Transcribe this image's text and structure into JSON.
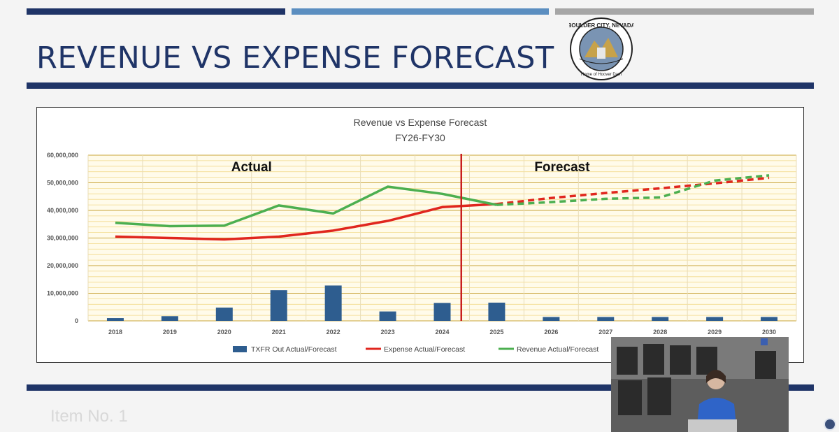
{
  "slide": {
    "title": "REVENUE VS EXPENSE FORECAST",
    "footer_text": "Item No. 1",
    "logo": {
      "icon": "city-seal-icon",
      "text_top": "BOULDER CITY, NEVADA",
      "text_bottom": "Home of Hoover Dam"
    },
    "accent_colors": {
      "navy": "#1f3467",
      "light_blue": "#5b8ec0",
      "gray": "#a6a6a6"
    }
  },
  "chart_data": {
    "type": "bar+line",
    "title": "Revenue vs Expense Forecast",
    "subtitle": "FY26-FY30",
    "categories": [
      "2018",
      "2019",
      "2020",
      "2021",
      "2022",
      "2023",
      "2024",
      "2025",
      "2026",
      "2027",
      "2028",
      "2029",
      "2030"
    ],
    "ylim": [
      0,
      60000000
    ],
    "yticks": [
      0,
      10000000,
      20000000,
      30000000,
      40000000,
      50000000,
      60000000
    ],
    "ytick_labels": [
      "0",
      "10,000,000",
      "20,000,000",
      "30,000,000",
      "40,000,000",
      "50,000,000",
      "60,000,000"
    ],
    "grid": true,
    "legend_position": "bottom",
    "annotations": [
      {
        "text": "Actual",
        "region": "left"
      },
      {
        "text": "Forecast",
        "region": "right"
      }
    ],
    "divider_between": [
      "2024",
      "2025"
    ],
    "series": [
      {
        "name": "TXFR Out Actual/Forecast",
        "type": "bar",
        "color": "#2e5d8f",
        "values": [
          1000000,
          1700000,
          4800000,
          11100000,
          12800000,
          3400000,
          6500000,
          6600000,
          1400000,
          1400000,
          1400000,
          1400000,
          1400000
        ]
      },
      {
        "name": "Expense Actual/Forecast",
        "type": "line",
        "color": "#e0261e",
        "forecast_from_index": 7,
        "values": [
          30500000,
          30000000,
          29500000,
          30500000,
          32700000,
          36200000,
          41200000,
          42300000,
          44500000,
          46300000,
          48000000,
          49800000,
          51800000
        ]
      },
      {
        "name": "Revenue Actual/Forecast",
        "type": "line",
        "color": "#4caf50",
        "forecast_from_index": 7,
        "values": [
          35500000,
          34300000,
          34500000,
          41800000,
          38900000,
          48600000,
          46000000,
          42000000,
          43000000,
          44200000,
          44700000,
          50800000,
          52700000
        ]
      }
    ]
  }
}
